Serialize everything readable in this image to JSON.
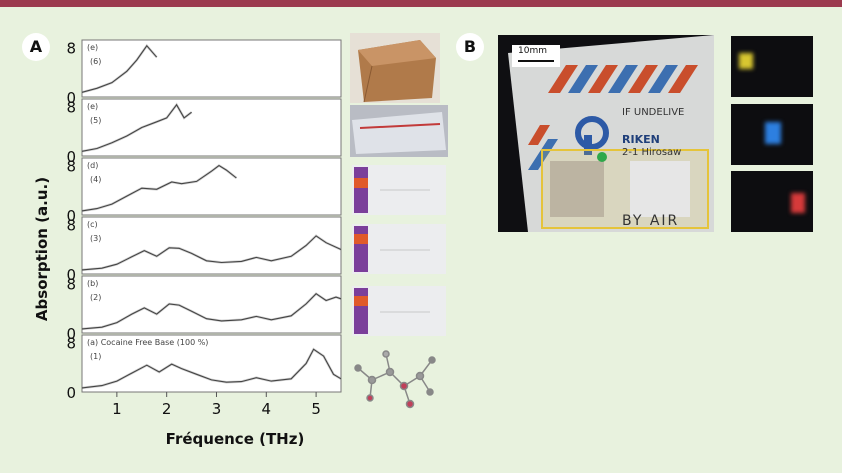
{
  "panels": {
    "a": "A",
    "b": "B"
  },
  "axes": {
    "ylabel": "Absorption (a.u.)",
    "xlabel": "Fréquence (THz)"
  },
  "chart_data": {
    "type": "line",
    "xlabel": "Fréquence (THz)",
    "ylabel": "Absorption (a.u.)",
    "xlim": [
      0.3,
      5.5
    ],
    "x_ticks": [
      "1",
      "2",
      "3",
      "4",
      "5"
    ],
    "subplots": [
      {
        "label": "(6)",
        "tag": "(e)",
        "ytick_top": "8",
        "ytick_bottom": "0",
        "x": [
          0.3,
          0.6,
          0.9,
          1.2,
          1.4,
          1.6,
          1.8
        ],
        "y": [
          0.3,
          1.0,
          2.0,
          4.0,
          6.0,
          8.5,
          6.5
        ]
      },
      {
        "label": "(5)",
        "tag": "(e)",
        "ytick_top": "8",
        "ytick_bottom": "0",
        "x": [
          0.3,
          0.6,
          0.9,
          1.2,
          1.5,
          1.8,
          2.0,
          2.2,
          2.35,
          2.5
        ],
        "y": [
          0.3,
          0.8,
          1.8,
          3.0,
          4.5,
          5.5,
          6.2,
          8.5,
          6.2,
          7.2
        ]
      },
      {
        "label": "(4)",
        "tag": "(d)",
        "ytick_top": "8",
        "ytick_bottom": "0",
        "x": [
          0.3,
          0.6,
          0.9,
          1.2,
          1.5,
          1.8,
          2.1,
          2.3,
          2.6,
          2.9,
          3.05,
          3.2,
          3.4
        ],
        "y": [
          0.2,
          0.6,
          1.4,
          2.8,
          4.2,
          4.0,
          5.3,
          5.0,
          5.4,
          7.2,
          8.2,
          7.4,
          6.0
        ]
      },
      {
        "label": "(3)",
        "tag": "(c)",
        "ytick_top": "8",
        "ytick_bottom": "0",
        "x": [
          0.3,
          0.7,
          1.0,
          1.3,
          1.55,
          1.8,
          2.05,
          2.25,
          2.5,
          2.8,
          3.1,
          3.5,
          3.8,
          4.1,
          4.5,
          4.8,
          5.0,
          5.2,
          5.5
        ],
        "y": [
          0.2,
          0.5,
          1.2,
          2.5,
          3.6,
          2.6,
          4.1,
          4.0,
          3.1,
          1.8,
          1.5,
          1.7,
          2.4,
          1.8,
          2.6,
          4.5,
          6.2,
          5.0,
          3.8
        ]
      },
      {
        "label": "(2)",
        "tag": "(b)",
        "ytick_top": "8",
        "ytick_bottom": "0",
        "x": [
          0.3,
          0.7,
          1.0,
          1.3,
          1.55,
          1.8,
          2.05,
          2.25,
          2.5,
          2.8,
          3.1,
          3.5,
          3.8,
          4.1,
          4.5,
          4.8,
          5.0,
          5.2,
          5.4,
          5.5
        ],
        "y": [
          0.2,
          0.5,
          1.3,
          2.8,
          3.9,
          2.8,
          4.6,
          4.4,
          3.3,
          2.0,
          1.6,
          1.8,
          2.4,
          1.8,
          2.5,
          4.6,
          6.4,
          5.2,
          5.8,
          5.5
        ]
      },
      {
        "label": "(1)",
        "tag": "(a) Cocaine Free Base (100 %)",
        "ytick_top": "8",
        "ytick_bottom": "0",
        "x": [
          0.3,
          0.7,
          1.0,
          1.3,
          1.6,
          1.85,
          2.1,
          2.3,
          2.6,
          2.9,
          3.2,
          3.5,
          3.8,
          4.1,
          4.5,
          4.8,
          4.95,
          5.15,
          5.35,
          5.5
        ],
        "y": [
          0.2,
          0.6,
          1.4,
          2.8,
          4.2,
          3.0,
          4.4,
          3.6,
          2.6,
          1.6,
          1.2,
          1.3,
          2.0,
          1.4,
          1.8,
          4.5,
          7.0,
          5.8,
          2.6,
          1.8
        ]
      }
    ]
  },
  "photo": {
    "scale_label": "10mm",
    "lines": [
      "IF UNDELIVE",
      "RIKEN",
      "2-1 Hirosaw",
      "BY AIR"
    ]
  },
  "colors": {
    "dot_yellow": "#d8c630",
    "dot_blue": "#2d7fe0",
    "dot_red": "#d63a3a",
    "highlight": "#e5c43a"
  }
}
